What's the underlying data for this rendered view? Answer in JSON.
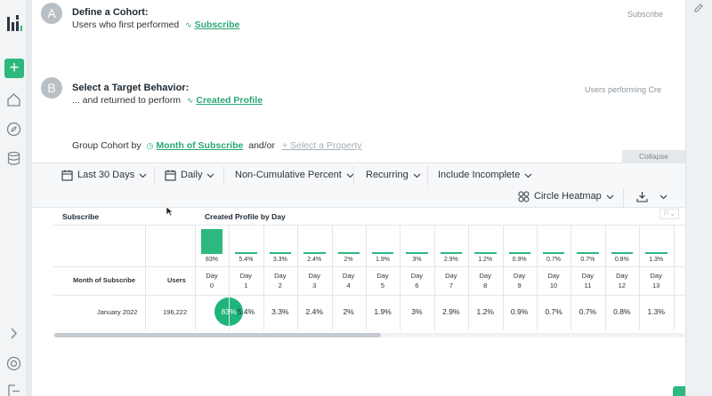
{
  "cohort": {
    "step_letter": "A",
    "title": "Define a Cohort:",
    "sub_prefix": "Users who first performed",
    "event": "Subscribe",
    "right_label": "Subscribe"
  },
  "target": {
    "step_letter": "B",
    "title": "Select a Target Behavior:",
    "sub_prefix": "... and returned to perform",
    "event": "Created Profile",
    "right_label": "Users performing Crea"
  },
  "group": {
    "prefix": "Group Cohort by",
    "property": "Month of Subscribe",
    "andor": "and/or",
    "add_property": "+ Select a Property"
  },
  "collapse_label": "Collapse",
  "toolbar": {
    "date_range": "Last 30 Days",
    "interval": "Daily",
    "metric": "Non-Cumulative Percent",
    "mode": "Recurring",
    "incomplete": "Include Incomplete",
    "view": "Circle Heatmap"
  },
  "table": {
    "left_header": "Subscribe",
    "right_header": "Created Profile by Day",
    "row_label_header": "Month of Subscribe",
    "users_header": "Users",
    "day_word": "Day",
    "days": [
      "0",
      "1",
      "2",
      "3",
      "4",
      "5",
      "6",
      "7",
      "8",
      "9",
      "10",
      "11",
      "12",
      "13"
    ],
    "totals": [
      "83%",
      "5.4%",
      "3.3%",
      "2.4%",
      "2%",
      "1.9%",
      "3%",
      "2.9%",
      "1.2%",
      "0.9%",
      "0.7%",
      "0.7%",
      "0.8%",
      "1.3%"
    ],
    "total_values": [
      83,
      5.4,
      3.3,
      2.4,
      2,
      1.9,
      3,
      2.9,
      1.2,
      0.9,
      0.7,
      0.7,
      0.8,
      1.3
    ],
    "row": {
      "month": "January 2022",
      "users": "196,222",
      "values": [
        "83%",
        "5.4%",
        "3.3%",
        "2.4%",
        "2%",
        "1.9%",
        "3%",
        "2.9%",
        "1.2%",
        "0.9%",
        "0.7%",
        "0.7%",
        "0.8%",
        "1.3%"
      ]
    }
  },
  "colors": {
    "accent": "#2db87d",
    "step": "#b9c0c5"
  }
}
